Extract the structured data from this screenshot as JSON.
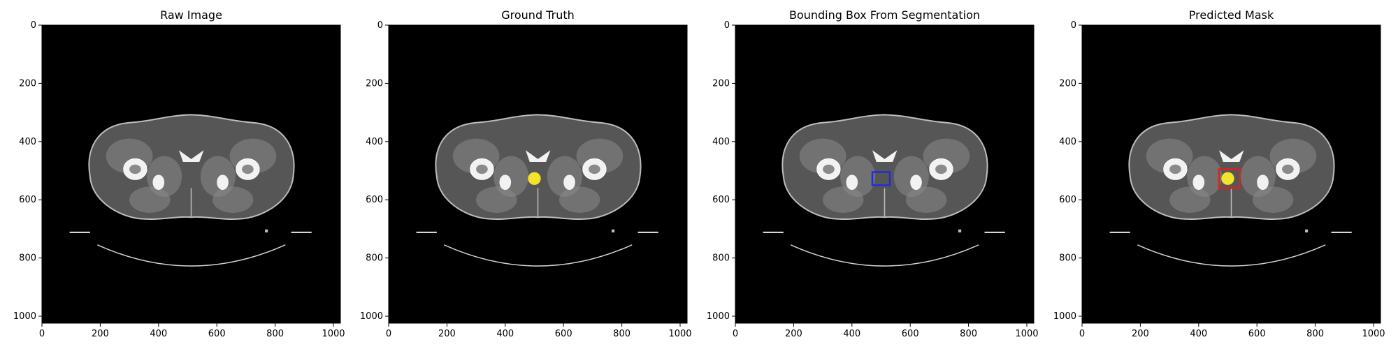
{
  "figure": {
    "panels": [
      {
        "title": "Raw Image",
        "overlay": "none"
      },
      {
        "title": "Ground Truth",
        "overlay": "mask"
      },
      {
        "title": "Bounding Box From Segmentation",
        "overlay": "bbox"
      },
      {
        "title": "Predicted Mask",
        "overlay": "mask+bbox"
      }
    ],
    "ticks": {
      "x": [
        "0",
        "200",
        "400",
        "600",
        "800",
        "1000"
      ],
      "y": [
        "0",
        "200",
        "400",
        "600",
        "800",
        "1000"
      ]
    },
    "image_extent": [
      0,
      1024
    ],
    "annotations": {
      "mask_color": "#f2e32b",
      "gt_bbox_color": "#1f2fd6",
      "pred_bbox_color": "#e02020",
      "mask_center": [
        500,
        527
      ],
      "gt_bbox": [
        470,
        505,
        530,
        550
      ],
      "pred_bbox": [
        470,
        495,
        540,
        560
      ]
    },
    "colors": {
      "image_bg": "#000000",
      "tissue_dark": "#565656",
      "tissue_mid": "#8a8a8a",
      "bone": "#f2f2f2",
      "skin": "#bdbdbd"
    }
  }
}
